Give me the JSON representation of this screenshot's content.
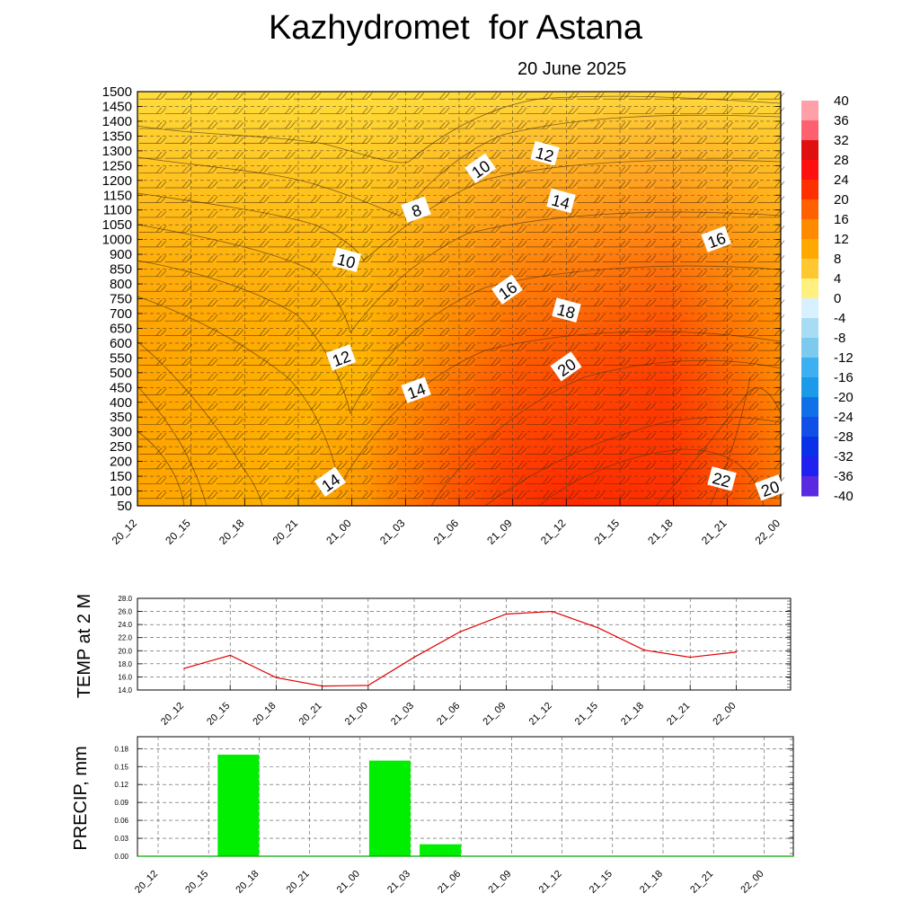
{
  "title": "Kazhydromet  for Astana",
  "subtitle": "20 June 2025",
  "time_labels": [
    "20_12",
    "20_15",
    "20_18",
    "20_21",
    "21_00",
    "21_03",
    "21_06",
    "21_09",
    "21_12",
    "21_15",
    "21_18",
    "21_21",
    "22_00"
  ],
  "chart_data": [
    {
      "type": "heatmap",
      "name": "vertical-cross-section",
      "x": [
        "20_12",
        "20_15",
        "20_18",
        "20_21",
        "21_00",
        "21_03",
        "21_06",
        "21_09",
        "21_12",
        "21_15",
        "21_18",
        "21_21",
        "22_00"
      ],
      "y_ticks": [
        50,
        100,
        150,
        200,
        250,
        300,
        350,
        400,
        450,
        500,
        550,
        600,
        650,
        700,
        750,
        800,
        850,
        900,
        1000,
        1050,
        1100,
        1150,
        1200,
        1250,
        1300,
        1350,
        1400,
        1450,
        1500
      ],
      "contour_labels": [
        {
          "text": "8",
          "x": 5.2,
          "y": 1100
        },
        {
          "text": "10",
          "x": 3.9,
          "y": 880
        },
        {
          "text": "10",
          "x": 6.4,
          "y": 1240
        },
        {
          "text": "12",
          "x": 3.8,
          "y": 550
        },
        {
          "text": "12",
          "x": 7.6,
          "y": 1290
        },
        {
          "text": "14",
          "x": 3.6,
          "y": 130
        },
        {
          "text": "14",
          "x": 5.2,
          "y": 440
        },
        {
          "text": "14",
          "x": 7.9,
          "y": 1130
        },
        {
          "text": "16",
          "x": 6.9,
          "y": 780
        },
        {
          "text": "16",
          "x": 10.8,
          "y": 1000
        },
        {
          "text": "18",
          "x": 8.0,
          "y": 710
        },
        {
          "text": "20",
          "x": 8.0,
          "y": 520
        },
        {
          "text": "20",
          "x": 11.8,
          "y": 110
        },
        {
          "text": "22",
          "x": 10.9,
          "y": 140
        }
      ],
      "colorbar": {
        "labels": [
          "40",
          "36",
          "32",
          "28",
          "24",
          "20",
          "16",
          "12",
          "8",
          "4",
          "0",
          "-4",
          "-8",
          "-12",
          "-16",
          "-20",
          "-24",
          "-28",
          "-32",
          "-36",
          "-40"
        ]
      }
    },
    {
      "type": "line",
      "name": "temperature-2m",
      "ylabel": "TEMP at 2 M",
      "x": [
        "20_12",
        "20_15",
        "20_18",
        "20_21",
        "21_00",
        "21_03",
        "21_06",
        "21_09",
        "21_12",
        "21_15",
        "21_18",
        "21_21",
        "22_00"
      ],
      "values": [
        17.3,
        19.3,
        15.9,
        14.6,
        14.7,
        19.0,
        22.9,
        25.6,
        26.0,
        23.5,
        20.1,
        19.0,
        19.8
      ],
      "ylim": [
        14.0,
        28.0
      ],
      "y_ticks": [
        "14.0",
        "16.0",
        "18.0",
        "20.0",
        "22.0",
        "24.0",
        "26.0",
        "28.0"
      ],
      "color": "#e00000"
    },
    {
      "type": "bar",
      "name": "precipitation",
      "ylabel": "PRECIP, mm",
      "categories": [
        "20_12",
        "20_15",
        "20_18",
        "20_21",
        "21_00",
        "21_03",
        "21_06",
        "21_09",
        "21_12",
        "21_15",
        "21_18",
        "21_21",
        "22_00"
      ],
      "values": [
        0,
        0.17,
        0,
        0,
        0.16,
        0.02,
        0,
        0,
        0,
        0,
        0,
        0,
        0
      ],
      "ylim": [
        0,
        0.2
      ],
      "y_ticks": [
        "0.00",
        "0.03",
        "0.06",
        "0.09",
        "0.12",
        "0.15",
        "0.18"
      ],
      "color": "#00ee00"
    }
  ]
}
